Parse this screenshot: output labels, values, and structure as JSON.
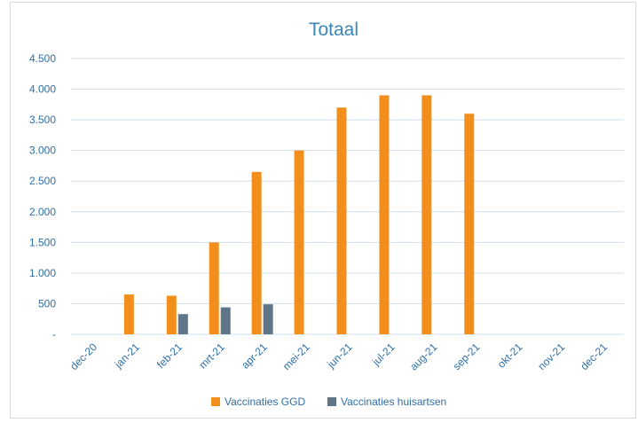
{
  "chart_data": {
    "type": "bar",
    "title": "Totaal",
    "categories": [
      "dec-20",
      "jan-21",
      "feb-21",
      "mrt-21",
      "apr-21",
      "mei-21",
      "jun-21",
      "jul-21",
      "aug-21",
      "sep-21",
      "okt-21",
      "nov-21",
      "dec-21"
    ],
    "series": [
      {
        "name": "Vaccinaties GGD",
        "color": "#f28e1c",
        "values": [
          0,
          650,
          630,
          1500,
          2650,
          3000,
          3700,
          3900,
          3900,
          3600,
          0,
          0,
          0
        ]
      },
      {
        "name": "Vaccinaties huisartsen",
        "color": "#5f7689",
        "values": [
          0,
          0,
          330,
          440,
          490,
          0,
          0,
          0,
          0,
          0,
          0,
          0,
          0
        ]
      }
    ],
    "ylim": [
      0,
      4500
    ],
    "yticks": [
      0,
      500,
      1000,
      1500,
      2000,
      2500,
      3000,
      3500,
      4000,
      4500
    ],
    "ytick_labels": [
      "-",
      "500",
      "1.000",
      "1.500",
      "2.000",
      "2.500",
      "3.000",
      "3.500",
      "4.000",
      "4.500"
    ],
    "grid": true,
    "legend_position": "bottom",
    "colors": {
      "title": "#3a86b8",
      "ticks": "#2f6fa6",
      "grid": "#cfe0ee"
    }
  }
}
